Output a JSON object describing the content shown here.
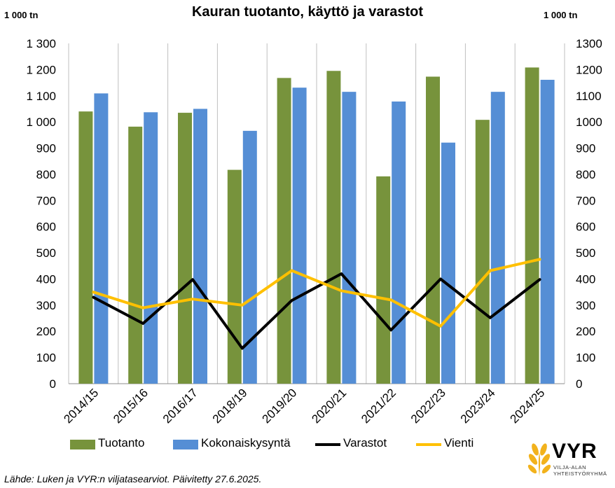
{
  "title": "Kauran tuotanto, käyttö ja varastot",
  "unit_left": "1 000 tn",
  "unit_right": "1 000 tn",
  "source": "Lähde: Luken ja VYR:n viljatasearviot. Päivitetty 27.6.2025.",
  "logo": {
    "name": "VYR",
    "sub1": "VILJA-ALAN",
    "sub2": "YHTEISTYÖRYHMÄ"
  },
  "colors": {
    "tuotanto": "#77933c",
    "kokonaiskysynta": "#558ed5",
    "varastot": "#000000",
    "vienti": "#ffc000",
    "grid": "#bfbfbf"
  },
  "chart_data": {
    "type": "bar",
    "title": "Kauran tuotanto, käyttö ja varastot",
    "ylabel": "1 000 tn",
    "ylim": [
      0,
      1300
    ],
    "yticks_left": [
      "0",
      "100",
      "200",
      "300",
      "400",
      "500",
      "600",
      "700",
      "800",
      "900",
      "1 000",
      "1 100",
      "1 200",
      "1 300"
    ],
    "yticks_right": [
      "0",
      "100",
      "200",
      "300",
      "400",
      "500",
      "600",
      "700",
      "800",
      "900",
      "1000",
      "1100",
      "1200",
      "1300"
    ],
    "grid": "vertical",
    "legend_position": "bottom",
    "categories": [
      "2014/15",
      "2015/16",
      "2016/17",
      "2018/19",
      "2019/20",
      "2020/21",
      "2021/22",
      "2022/23",
      "2023/24",
      "2024/25"
    ],
    "series": [
      {
        "name": "Tuotanto",
        "kind": "bar",
        "values": [
          1040,
          982,
          1035,
          817,
          1168,
          1195,
          792,
          1173,
          1008,
          1208
        ]
      },
      {
        "name": "Kokonaiskysyntä",
        "kind": "bar",
        "values": [
          1109,
          1037,
          1050,
          966,
          1131,
          1115,
          1078,
          921,
          1115,
          1161
        ]
      },
      {
        "name": "Varastot",
        "kind": "line",
        "values": [
          330,
          230,
          398,
          135,
          318,
          420,
          205,
          400,
          252,
          398
        ]
      },
      {
        "name": "Vienti",
        "kind": "line",
        "values": [
          350,
          290,
          323,
          300,
          432,
          355,
          320,
          220,
          432,
          475
        ]
      }
    ]
  }
}
